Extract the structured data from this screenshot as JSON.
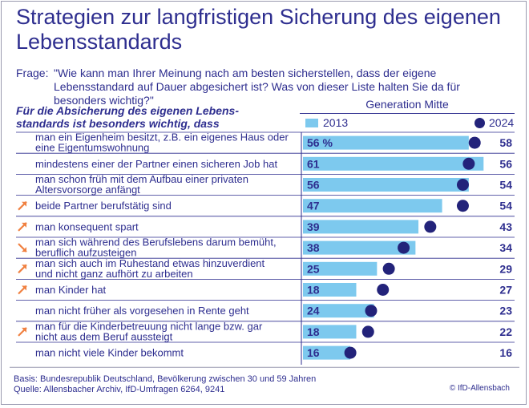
{
  "title": "Strategien zur langfristigen Sicherung des eigenen Lebensstandards",
  "question": {
    "label": "Frage:",
    "text": "\"Wie kann man Ihrer Meinung nach am besten sicherstellen, dass der eigene Lebensstandard auf Dauer abgesichert ist? Was von dieser Liste halten Sie da für besonders wichtig?\""
  },
  "subheading": "Für die Absicherung des eigenen Lebens-standards ist besonders wichtig, dass",
  "group_label": "Generation Mitte",
  "legend": {
    "bar": "2013",
    "dot": "2024"
  },
  "colors": {
    "bar": "#7dc9ee",
    "dot": "#23237a",
    "text": "#2e2e8f",
    "arrow": "#f08040",
    "rule": "#2e2e8f"
  },
  "chart_data": {
    "type": "bar",
    "xlim": [
      0,
      60
    ],
    "percent_suffix_first": " %",
    "categories": [
      {
        "lines": [
          "man ein Eigenheim besitzt, z.B. ein eigenes Haus oder",
          "eine Eigentumswohnung"
        ],
        "trend": "none"
      },
      {
        "lines": [
          "mindestens einer der Partner einen sicheren Job hat"
        ],
        "trend": "none"
      },
      {
        "lines": [
          "man schon früh mit dem Aufbau einer privaten",
          "Altersvorsorge anfängt"
        ],
        "trend": "none"
      },
      {
        "lines": [
          "beide Partner berufstätig sind"
        ],
        "trend": "up"
      },
      {
        "lines": [
          "man konsequent spart"
        ],
        "trend": "up"
      },
      {
        "lines": [
          "man sich während des Berufslebens darum bemüht,",
          "beruflich aufzusteigen"
        ],
        "trend": "down"
      },
      {
        "lines": [
          "man sich auch im Ruhestand etwas hinzuverdient",
          "und nicht ganz aufhört zu arbeiten"
        ],
        "trend": "up"
      },
      {
        "lines": [
          "man Kinder hat"
        ],
        "trend": "up"
      },
      {
        "lines": [
          "man nicht früher als vorgesehen in Rente geht"
        ],
        "trend": "none"
      },
      {
        "lines": [
          "man für die Kinderbetreuung nicht lange bzw. gar",
          "nicht aus dem Beruf aussteigt"
        ],
        "trend": "up"
      },
      {
        "lines": [
          "man nicht viele Kinder bekommt"
        ],
        "trend": "none"
      }
    ],
    "series": [
      {
        "name": "2013",
        "values": [
          56,
          61,
          56,
          47,
          39,
          38,
          25,
          18,
          24,
          18,
          16
        ]
      },
      {
        "name": "2024",
        "values": [
          58,
          56,
          54,
          54,
          43,
          34,
          29,
          27,
          23,
          22,
          16
        ]
      }
    ]
  },
  "footer": {
    "basis": "Basis: Bundesrepublik Deutschland, Bevölkerung zwischen 30 und 59 Jahren",
    "source": "Quelle: Allensbacher Archiv, IfD-Umfragen 6264, 9241",
    "copyright": "© IfD-Allensbach"
  }
}
